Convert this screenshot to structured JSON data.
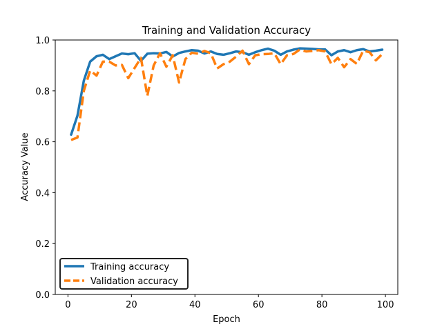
{
  "chart_data": {
    "type": "line",
    "title": "Training and Validation Accuracy",
    "xlabel": "Epoch",
    "ylabel": "Accuracy Value",
    "xlim": [
      -4.0,
      103.9
    ],
    "ylim": [
      0.0,
      1.0
    ],
    "xticks": [
      0,
      20,
      40,
      60,
      80,
      100
    ],
    "yticks": [
      0.0,
      0.2,
      0.4,
      0.6,
      0.8,
      1.0
    ],
    "xtick_labels": [
      "0",
      "20",
      "40",
      "60",
      "80",
      "100"
    ],
    "ytick_labels": [
      "0.0",
      "0.2",
      "0.4",
      "0.6",
      "0.8",
      "1.0"
    ],
    "grid": false,
    "legend_position": "lower-left",
    "x": [
      1,
      3,
      5,
      7,
      9,
      11,
      13,
      15,
      17,
      19,
      21,
      23,
      25,
      27,
      29,
      31,
      33,
      35,
      37,
      39,
      41,
      43,
      45,
      47,
      49,
      51,
      53,
      55,
      57,
      59,
      61,
      63,
      65,
      67,
      69,
      71,
      73,
      75,
      77,
      79,
      81,
      83,
      85,
      87,
      89,
      91,
      93,
      95,
      97,
      99
    ],
    "series": [
      {
        "name": "Training accuracy",
        "color": "#1f77b4",
        "style": "solid",
        "values": [
          0.628,
          0.703,
          0.84,
          0.915,
          0.936,
          0.942,
          0.925,
          0.936,
          0.947,
          0.944,
          0.948,
          0.918,
          0.946,
          0.948,
          0.947,
          0.953,
          0.935,
          0.949,
          0.955,
          0.96,
          0.958,
          0.947,
          0.955,
          0.945,
          0.942,
          0.948,
          0.955,
          0.952,
          0.942,
          0.952,
          0.96,
          0.966,
          0.958,
          0.942,
          0.955,
          0.962,
          0.967,
          0.966,
          0.965,
          0.963,
          0.963,
          0.94,
          0.955,
          0.96,
          0.952,
          0.96,
          0.964,
          0.955,
          0.958,
          0.962
        ]
      },
      {
        "name": "Validation accuracy",
        "color": "#ff7f0e",
        "style": "dashed",
        "values": [
          0.607,
          0.617,
          0.8,
          0.88,
          0.86,
          0.915,
          0.915,
          0.9,
          0.902,
          0.85,
          0.89,
          0.93,
          0.78,
          0.9,
          0.948,
          0.895,
          0.94,
          0.833,
          0.925,
          0.95,
          0.946,
          0.957,
          0.948,
          0.888,
          0.905,
          0.915,
          0.935,
          0.958,
          0.905,
          0.94,
          0.944,
          0.945,
          0.948,
          0.905,
          0.94,
          0.945,
          0.962,
          0.955,
          0.957,
          0.96,
          0.955,
          0.905,
          0.93,
          0.893,
          0.925,
          0.906,
          0.958,
          0.952,
          0.92,
          0.945
        ]
      }
    ]
  }
}
